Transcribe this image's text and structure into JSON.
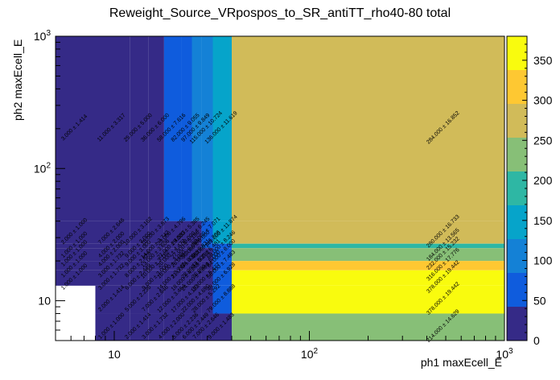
{
  "chart_data": {
    "type": "heatmap",
    "title": "Reweight_Source_VRpospos_to_SR_antiTT_rho40-80 total",
    "xlabel": "ph1 maxEcell_E",
    "ylabel": "ph2 maxEcell_E",
    "x_scale": "log",
    "y_scale": "log",
    "xlim": [
      5,
      1000
    ],
    "ylim": [
      5,
      1000
    ],
    "x_ticks": [
      "10",
      "10^2",
      "10^3"
    ],
    "y_ticks": [
      "10",
      "10^2",
      "10^3"
    ],
    "z_range": [
      0,
      380
    ],
    "z_ticks": [
      "0",
      "50",
      "100",
      "150",
      "200",
      "250",
      "300",
      "350"
    ],
    "x_bins": [
      5,
      8,
      12,
      15,
      18,
      22,
      25,
      28,
      32,
      40,
      1000
    ],
    "y_bins": [
      5,
      8,
      13,
      17,
      20,
      25,
      27,
      40,
      1000
    ],
    "palette": [
      "#352a87",
      "#0f5cdd",
      "#1481d6",
      "#06a4ca",
      "#2eb7a4",
      "#87bf77",
      "#d1bb59",
      "#fec832",
      "#f9fb0e"
    ],
    "cells": [
      {
        "ix": 0,
        "iy": 7,
        "value": 3.0,
        "error": 1.414,
        "label": "3.000 ± 1.414"
      },
      {
        "ix": 0,
        "iy": 6,
        "value": 2.0,
        "error": 1.0,
        "label": "2.000 ± 1.000"
      },
      {
        "ix": 0,
        "iy": 5,
        "value": 1.0,
        "error": 1.0,
        "label": "1.000 ± 1.000"
      },
      {
        "ix": 0,
        "iy": 4,
        "value": 1.0,
        "error": 1.0,
        "label": "1.000 ± 1.000"
      },
      {
        "ix": 0,
        "iy": 3,
        "value": 1.0,
        "error": 1.0,
        "label": "1.000 ± 1.000"
      },
      {
        "ix": 0,
        "iy": 2,
        "value": 1.0,
        "error": 1.0,
        "label": "1.000 ± 1.000"
      },
      {
        "ix": 1,
        "iy": 7,
        "value": 11.0,
        "error": 3.317,
        "label": "11.000 ± 3.317"
      },
      {
        "ix": 1,
        "iy": 6,
        "value": 7.0,
        "error": 2.646,
        "label": "7.000 ± 2.646"
      },
      {
        "ix": 1,
        "iy": 5,
        "value": 4.0,
        "error": 2.0,
        "label": "4.000 ± 2.000"
      },
      {
        "ix": 1,
        "iy": 4,
        "value": 4.0,
        "error": 2.0,
        "label": "4.000 ± 2.000"
      },
      {
        "ix": 1,
        "iy": 3,
        "value": 3.0,
        "error": 1.732,
        "label": "3.000 ± 1.732"
      },
      {
        "ix": 1,
        "iy": 2,
        "value": 3.0,
        "error": 1.732,
        "label": "3.000 ± 1.732"
      },
      {
        "ix": 1,
        "iy": 1,
        "value": 2.0,
        "error": 1.414,
        "label": "2.000 ± 1.414"
      },
      {
        "ix": 1,
        "iy": 0,
        "value": 1.0,
        "error": 1.0,
        "label": "1.000 ± 1.000"
      },
      {
        "ix": 2,
        "iy": 7,
        "value": 25.0,
        "error": 5.0,
        "label": "25.000 ± 5.000"
      },
      {
        "ix": 2,
        "iy": 6,
        "value": 10.0,
        "error": 3.162,
        "label": "10.000 ± 3.162"
      },
      {
        "ix": 2,
        "iy": 5,
        "value": 9.0,
        "error": 3.0,
        "label": "9.000 ± 3.000"
      },
      {
        "ix": 2,
        "iy": 4,
        "value": 9.0,
        "error": 3.0,
        "label": "9.000 ± 3.000"
      },
      {
        "ix": 2,
        "iy": 3,
        "value": 8.0,
        "error": 2.828,
        "label": "8.000 ± 2.828"
      },
      {
        "ix": 2,
        "iy": 2,
        "value": 6.0,
        "error": 2.449,
        "label": "6.000 ± 2.449"
      },
      {
        "ix": 2,
        "iy": 1,
        "value": 5.0,
        "error": 2.236,
        "label": "5.000 ± 2.236"
      },
      {
        "ix": 2,
        "iy": 0,
        "value": 2.0,
        "error": 1.414,
        "label": "2.000 ± 1.414"
      },
      {
        "ix": 3,
        "iy": 7,
        "value": 36.0,
        "error": 6.0,
        "label": "36.000 ± 6.000"
      },
      {
        "ix": 3,
        "iy": 6,
        "value": 15.0,
        "error": 3.873,
        "label": "15.000 ± 3.873"
      },
      {
        "ix": 3,
        "iy": 5,
        "value": 14.0,
        "error": 3.742,
        "label": "14.000 ± 3.742"
      },
      {
        "ix": 3,
        "iy": 4,
        "value": 13.0,
        "error": 3.606,
        "label": "13.000 ± 3.606"
      },
      {
        "ix": 3,
        "iy": 3,
        "value": 10.0,
        "error": 3.162,
        "label": "10.000 ± 3.162"
      },
      {
        "ix": 3,
        "iy": 2,
        "value": 9.0,
        "error": 3.0,
        "label": "9.000 ± 3.000"
      },
      {
        "ix": 3,
        "iy": 1,
        "value": 7.0,
        "error": 2.646,
        "label": "7.000 ± 2.646"
      },
      {
        "ix": 3,
        "iy": 0,
        "value": 3.0,
        "error": 1.732,
        "label": "3.000 ± 1.732"
      },
      {
        "ix": 4,
        "iy": 7,
        "value": 58.0,
        "error": 7.616,
        "label": "58.000 ± 7.616"
      },
      {
        "ix": 4,
        "iy": 6,
        "value": 23.0,
        "error": 4.796,
        "label": "23.000 ± 4.796"
      },
      {
        "ix": 4,
        "iy": 5,
        "value": 21.0,
        "error": 4.583,
        "label": "21.000 ± 4.583"
      },
      {
        "ix": 4,
        "iy": 4,
        "value": 20.0,
        "error": 4.472,
        "label": "20.000 ± 4.472"
      },
      {
        "ix": 4,
        "iy": 3,
        "value": 16.0,
        "error": 4.0,
        "label": "16.000 ± 4.000"
      },
      {
        "ix": 4,
        "iy": 2,
        "value": 14.0,
        "error": 3.742,
        "label": "14.000 ± 3.742"
      },
      {
        "ix": 4,
        "iy": 1,
        "value": 12.0,
        "error": 3.464,
        "label": "12.000 ± 3.464"
      },
      {
        "ix": 4,
        "iy": 0,
        "value": 4.0,
        "error": 2.0,
        "label": "4.000 ± 2.000"
      },
      {
        "ix": 5,
        "iy": 7,
        "value": 82.0,
        "error": 9.055,
        "label": "82.000 ± 9.055"
      },
      {
        "ix": 5,
        "iy": 6,
        "value": 29.0,
        "error": 5.385,
        "label": "29.000 ± 5.385"
      },
      {
        "ix": 5,
        "iy": 5,
        "value": 27.0,
        "error": 5.196,
        "label": "27.000 ± 5.196"
      },
      {
        "ix": 5,
        "iy": 4,
        "value": 26.0,
        "error": 5.099,
        "label": "26.000 ± 5.099"
      },
      {
        "ix": 5,
        "iy": 3,
        "value": 21.0,
        "error": 4.583,
        "label": "21.000 ± 4.583"
      },
      {
        "ix": 5,
        "iy": 2,
        "value": 18.0,
        "error": 4.243,
        "label": "18.000 ± 4.243"
      },
      {
        "ix": 5,
        "iy": 1,
        "value": 17.0,
        "error": 4.123,
        "label": "17.000 ± 4.123"
      },
      {
        "ix": 5,
        "iy": 0,
        "value": 5.0,
        "error": 2.236,
        "label": "5.000 ± 2.236"
      },
      {
        "ix": 6,
        "iy": 7,
        "value": 97.0,
        "error": 9.849,
        "label": "97.000 ± 9.849"
      },
      {
        "ix": 6,
        "iy": 6,
        "value": 39.0,
        "error": 6.245,
        "label": "39.000 ± 6.245"
      },
      {
        "ix": 6,
        "iy": 5,
        "value": 36.0,
        "error": 6.0,
        "label": "36.000 ± 6.000"
      },
      {
        "ix": 6,
        "iy": 4,
        "value": 34.0,
        "error": 5.831,
        "label": "34.000 ± 5.831"
      },
      {
        "ix": 6,
        "iy": 3,
        "value": 28.0,
        "error": 5.292,
        "label": "28.000 ± 5.292"
      },
      {
        "ix": 6,
        "iy": 2,
        "value": 24.0,
        "error": 4.899,
        "label": "24.000 ± 4.899"
      },
      {
        "ix": 6,
        "iy": 1,
        "value": 22.0,
        "error": 4.69,
        "label": "22.000 ± 4.690"
      },
      {
        "ix": 6,
        "iy": 0,
        "value": 6.0,
        "error": 2.449,
        "label": "6.000 ± 2.449"
      },
      {
        "ix": 7,
        "iy": 7,
        "value": 115.0,
        "error": 10.724,
        "label": "115.000 ± 10.724"
      },
      {
        "ix": 7,
        "iy": 6,
        "value": 50.0,
        "error": 7.071,
        "label": "50.000 ± 7.071"
      },
      {
        "ix": 7,
        "iy": 5,
        "value": 45.0,
        "error": 6.708,
        "label": "45.000 ± 6.708"
      },
      {
        "ix": 7,
        "iy": 4,
        "value": 42.0,
        "error": 6.481,
        "label": "42.000 ± 6.481"
      },
      {
        "ix": 7,
        "iy": 3,
        "value": 36.0,
        "error": 6.0,
        "label": "36.000 ± 6.000"
      },
      {
        "ix": 7,
        "iy": 2,
        "value": 30.0,
        "error": 5.477,
        "label": "30.000 ± 5.477"
      },
      {
        "ix": 7,
        "iy": 1,
        "value": 28.0,
        "error": 5.292,
        "label": "28.000 ± 5.292"
      },
      {
        "ix": 7,
        "iy": 0,
        "value": 7.0,
        "error": 2.646,
        "label": "7.000 ± 2.646"
      },
      {
        "ix": 8,
        "iy": 7,
        "value": 136.0,
        "error": 11.619,
        "label": "136.000 ± 11.619"
      },
      {
        "ix": 8,
        "iy": 6,
        "value": 141.0,
        "error": 11.874,
        "label": "141.000 ± 11.874"
      },
      {
        "ix": 8,
        "iy": 5,
        "value": 68.0,
        "error": 8.246,
        "label": "68.000 ± 8.246"
      },
      {
        "ix": 8,
        "iy": 4,
        "value": 64.0,
        "error": 8.0,
        "label": "64.000 ± 8.000"
      },
      {
        "ix": 8,
        "iy": 3,
        "value": 56.0,
        "error": 7.483,
        "label": "56.000 ± 7.483"
      },
      {
        "ix": 8,
        "iy": 2,
        "value": 48.0,
        "error": 6.928,
        "label": "48.000 ± 6.928"
      },
      {
        "ix": 8,
        "iy": 1,
        "value": 79.0,
        "error": 8.888,
        "label": "79.000 ± 8.888"
      },
      {
        "ix": 8,
        "iy": 0,
        "value": 9.0,
        "error": 1.483,
        "label": "9.000 ± 1.483"
      },
      {
        "ix": 9,
        "iy": 7,
        "value": 284.0,
        "error": 16.852,
        "label": "284.000 ± 16.852"
      },
      {
        "ix": 9,
        "iy": 6,
        "value": 280.0,
        "error": 16.733,
        "label": "280.000 ± 16.733"
      },
      {
        "ix": 9,
        "iy": 5,
        "value": 184.0,
        "error": 13.565,
        "label": "184.000 ± 13.565"
      },
      {
        "ix": 9,
        "iy": 4,
        "value": 232.0,
        "error": 15.232,
        "label": "232.000 ± 15.232"
      },
      {
        "ix": 9,
        "iy": 3,
        "value": 316.0,
        "error": 17.776,
        "label": "316.000 ± 17.776"
      },
      {
        "ix": 9,
        "iy": 2,
        "value": 378.0,
        "error": 19.442,
        "label": "378.000 ± 19.442"
      },
      {
        "ix": 9,
        "iy": 1,
        "value": 378.0,
        "error": 19.442,
        "label": "378.000 ± 19.442"
      },
      {
        "ix": 9,
        "iy": 0,
        "value": 214.0,
        "error": 14.629,
        "label": "214.000 ± 14.629"
      }
    ]
  }
}
